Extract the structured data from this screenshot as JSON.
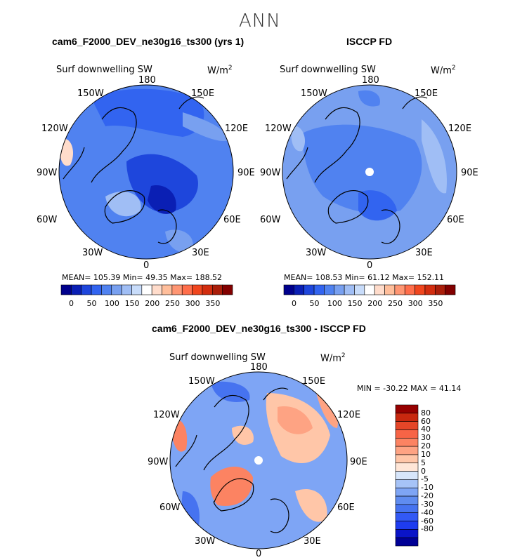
{
  "figure": {
    "main_title": "ANN",
    "panels": [
      {
        "title": "cam6_F2000_DEV_ne30g16_ts300 (yrs 1)",
        "variable": "Surf downwelling SW",
        "units_base": "W/m",
        "units_exp": "2",
        "stats": "MEAN= 105.39   Min=  49.35   Max= 188.52"
      },
      {
        "title": "ISCCP FD",
        "variable": "Surf downwelling SW",
        "units_base": "W/m",
        "units_exp": "2",
        "stats": "MEAN= 108.53   Min=  61.12   Max= 152.11"
      },
      {
        "title": "cam6_F2000_DEV_ne30g16_ts300 - ISCCP FD",
        "variable": "Surf downwelling SW",
        "units_base": "W/m",
        "units_exp": "2",
        "stats": "MIN = -30.22  MAX =   41.14"
      }
    ],
    "longitude_labels": {
      "top": "180",
      "bottom": "0",
      "left": [
        "150W",
        "120W",
        "90W",
        "60W",
        "30W"
      ],
      "right": [
        "150E",
        "120E",
        "90E",
        "60E",
        "30E"
      ]
    },
    "abs_colorbar": {
      "colors": [
        "#00008c",
        "#0a1fb4",
        "#1e46dc",
        "#3264f0",
        "#5082f0",
        "#78a0f0",
        "#a0bef5",
        "#c8dcfa",
        "#ffffff",
        "#ffdccb",
        "#ffbe9b",
        "#ff9673",
        "#ff6e4b",
        "#f0461e",
        "#d22d0f",
        "#aa1e0a",
        "#820000"
      ],
      "labels": [
        "0",
        "50",
        "100",
        "150",
        "200",
        "250",
        "300",
        "350"
      ]
    },
    "diff_colorbar": {
      "colors": [
        "#000096",
        "#0a14c8",
        "#1e3cf0",
        "#3259f5",
        "#4673f0",
        "#5f8cf0",
        "#7ea5f5",
        "#a6c3f7",
        "#d7e6fb",
        "#ffe6d7",
        "#ffc6a8",
        "#fea383",
        "#fc8362",
        "#f76446",
        "#e54628",
        "#c8280f",
        "#960000"
      ],
      "labels": [
        "80",
        "60",
        "40",
        "30",
        "20",
        "10",
        "5",
        "0",
        "-5",
        "-10",
        "-20",
        "-30",
        "-40",
        "-60",
        "-80"
      ]
    },
    "colors": {
      "base_blue": "#5082f0",
      "mid_blue": "#3264f0",
      "deep_blue": "#1e46dc",
      "light_blue": "#a0bef5",
      "pale": "#dce8fa",
      "diff_base": "#7ea5f5",
      "diff_orange": "#fc8362",
      "diff_lightorange": "#ffc6a8",
      "diff_deep": "#4673f0"
    }
  }
}
